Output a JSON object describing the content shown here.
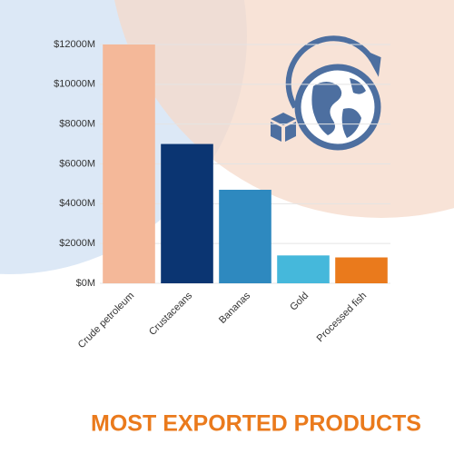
{
  "chart_data": {
    "type": "bar",
    "title": "MOST EXPORTED PRODUCTS",
    "categories": [
      "Crude petroleum",
      "Crustaceans",
      "Bananas",
      "Gold",
      "Processed fish"
    ],
    "values": [
      12000,
      7000,
      4700,
      1400,
      1300
    ],
    "colors": [
      "#f4b899",
      "#0b3572",
      "#2e89bf",
      "#45b8db",
      "#ea7a1c"
    ],
    "ylim": [
      0,
      12000
    ],
    "yticks": [
      {
        "value": 0,
        "label": "$0M"
      },
      {
        "value": 2000,
        "label": "$2000M"
      },
      {
        "value": 4000,
        "label": "$4000M"
      },
      {
        "value": 6000,
        "label": "$6000M"
      },
      {
        "value": 8000,
        "label": "$8000M"
      },
      {
        "value": 10000,
        "label": "$10000M"
      },
      {
        "value": 12000,
        "label": "$12000M"
      }
    ],
    "grid": true
  }
}
